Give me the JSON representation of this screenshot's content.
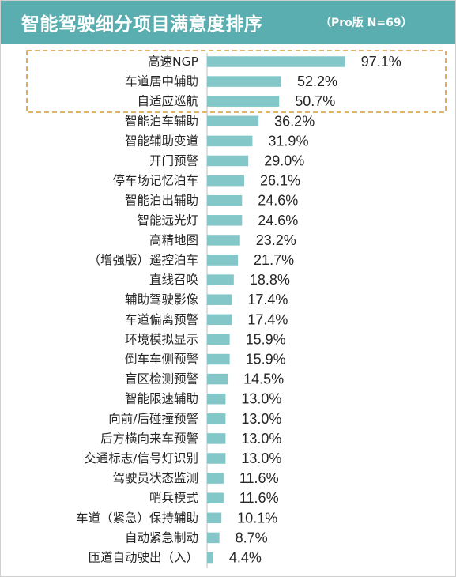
{
  "header": {
    "title": "智能驾驶细分项目满意度排序",
    "subtitle": "（Pro版 N=69）",
    "background_color": "#5aaeaf"
  },
  "chart_data": {
    "type": "bar",
    "orientation": "horizontal",
    "title": "智能驾驶细分项目满意度排序",
    "subtitle": "（Pro版 N=69）",
    "categories": [
      "高速NGP",
      "车道居中辅助",
      "自适应巡航",
      "智能泊车辅助",
      "智能辅助变道",
      "开门预警",
      "停车场记忆泊车",
      "智能泊出辅助",
      "智能远光灯",
      "高精地图",
      "（增强版）遥控泊车",
      "直线召唤",
      "辅助驾驶影像",
      "车道偏离预警",
      "环境模拟显示",
      "倒车车侧预警",
      "盲区检测预警",
      "智能限速辅助",
      "向前/后碰撞预警",
      "后方横向来车预警",
      "交通标志/信号灯识别",
      "驾驶员状态监测",
      "哨兵模式",
      "车道（紧急）保持辅助",
      "自动紧急制动",
      "匝道自动驶出（入）"
    ],
    "values": [
      97.1,
      52.2,
      50.7,
      36.2,
      31.9,
      29.0,
      26.1,
      24.6,
      24.6,
      23.2,
      21.7,
      18.8,
      17.4,
      17.4,
      15.9,
      15.9,
      14.5,
      13.0,
      13.0,
      13.0,
      13.0,
      11.6,
      11.6,
      10.1,
      8.7,
      4.4
    ],
    "value_labels": [
      "97.1%",
      "52.2%",
      "50.7%",
      "36.2%",
      "31.9%",
      "29.0%",
      "26.1%",
      "24.6%",
      "24.6%",
      "23.2%",
      "21.7%",
      "18.8%",
      "17.4%",
      "17.4%",
      "15.9%",
      "15.9%",
      "14.5%",
      "13.0%",
      "13.0%",
      "13.0%",
      "13.0%",
      "11.6%",
      "11.6%",
      "10.1%",
      "8.7%",
      "4.4%"
    ],
    "xlabel": "",
    "ylabel": "",
    "xlim": [
      0,
      100
    ],
    "grid": false,
    "legend": "none",
    "highlighted_top_n": 3,
    "bar_color": "#84c7c8",
    "highlight_color": "#d99a3a"
  }
}
